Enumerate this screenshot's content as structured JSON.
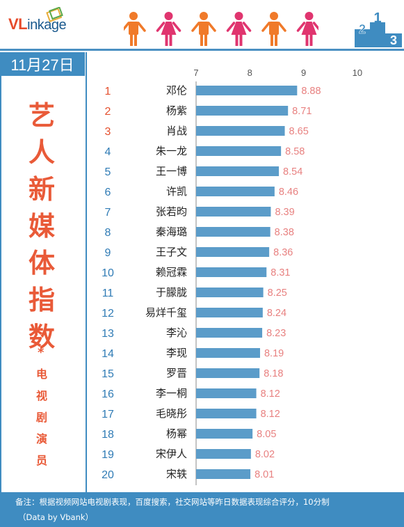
{
  "brand": {
    "logo_prefix": "VL",
    "logo_rest": "inkage"
  },
  "date": "11月27日",
  "title_chars": [
    "艺",
    "人",
    "新",
    "媒",
    "体",
    "指",
    "数"
  ],
  "title_star": "*",
  "subtitle_chars": [
    "电",
    "视",
    "剧",
    "演",
    "员"
  ],
  "footer": {
    "note": "备注：根据视频网站电视剧表现，百度搜索，社交网站等昨日数据表现综合评分，10分制",
    "source": "（Data by Vbank）"
  },
  "colors": {
    "bar": "#5b9cc9",
    "rank_top": "#e4502e",
    "rank": "#2f7bb5",
    "value": "#e88180",
    "title": "#e95a38"
  },
  "chart_data": {
    "type": "bar",
    "orientation": "horizontal",
    "xlim": [
      7,
      10
    ],
    "xticks": [
      7,
      8,
      9,
      10
    ],
    "grid": false,
    "ranks": [
      1,
      2,
      3,
      4,
      5,
      6,
      7,
      8,
      9,
      10,
      11,
      12,
      13,
      14,
      15,
      16,
      17,
      18,
      19,
      20
    ],
    "categories": [
      "邓伦",
      "杨紫",
      "肖战",
      "朱一龙",
      "王一博",
      "许凯",
      "张若昀",
      "秦海璐",
      "王子文",
      "赖冠霖",
      "于朦胧",
      "易烊千玺",
      "李沁",
      "李现",
      "罗晋",
      "李一桐",
      "毛晓彤",
      "杨幂",
      "宋伊人",
      "宋轶"
    ],
    "values": [
      8.88,
      8.71,
      8.65,
      8.58,
      8.54,
      8.46,
      8.39,
      8.38,
      8.36,
      8.31,
      8.25,
      8.24,
      8.23,
      8.19,
      8.18,
      8.12,
      8.12,
      8.05,
      8.02,
      8.01
    ]
  }
}
